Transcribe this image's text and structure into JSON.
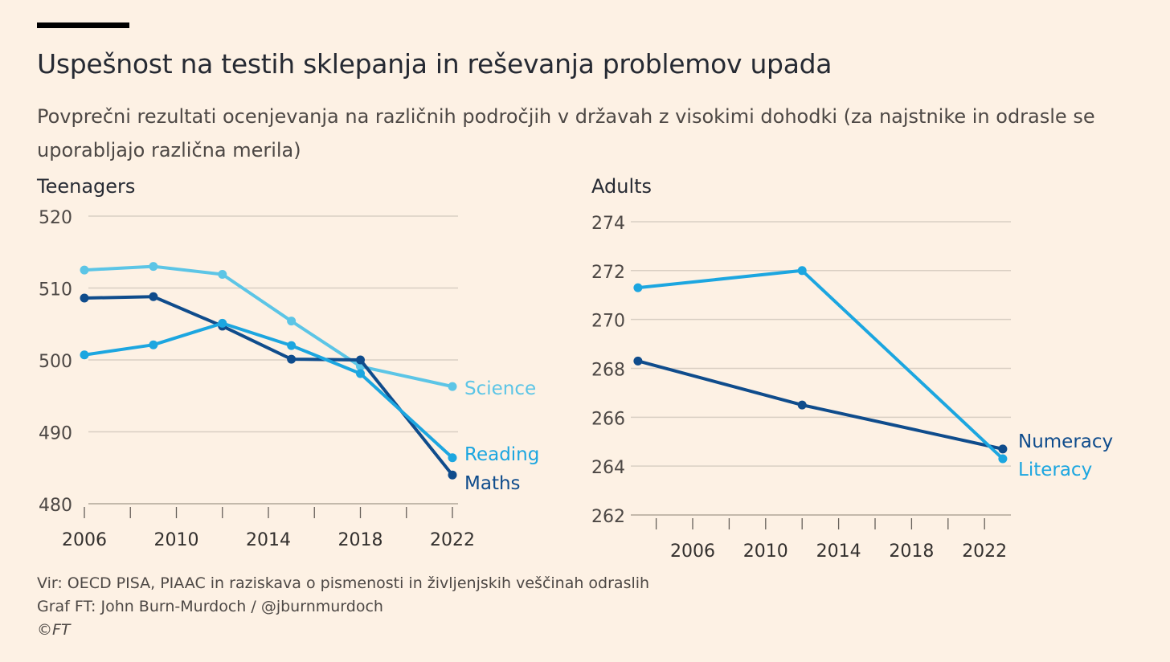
{
  "title": "Uspešnost na testih sklepanja in reševanja problemov upada",
  "subtitle": "Povprečni rezultati ocenjevanja na različnih področjih v državah z visokimi dohodki (za najstnike in odrasle se uporabljajo različna merila)",
  "footer": {
    "source": "Vir: OECD PISA, PIAAC in raziskava o pismenosti in življenjskih veščinah odraslih",
    "credit": "Graf FT: John Burn-Murdoch / @jburnmurdoch",
    "copyright": "©FT"
  },
  "chart_data": [
    {
      "type": "line",
      "title": "Teenagers",
      "ylim": [
        480,
        520
      ],
      "yticks": [
        480,
        490,
        500,
        510,
        520
      ],
      "xlim": [
        2006,
        2022
      ],
      "xticks": [
        2006,
        2010,
        2014,
        2018,
        2022
      ],
      "grid": true,
      "series": [
        {
          "name": "Science",
          "color": "#5cc5e6",
          "x": [
            2006,
            2009,
            2012,
            2015,
            2018,
            2022
          ],
          "values": [
            512.5,
            513,
            511.9,
            505.4,
            499.1,
            496.3
          ]
        },
        {
          "name": "Maths",
          "color": "#0f4c8c",
          "x": [
            2006,
            2009,
            2012,
            2015,
            2018,
            2022
          ],
          "values": [
            508.6,
            508.8,
            504.7,
            500.1,
            500,
            484
          ]
        },
        {
          "name": "Reading",
          "color": "#1ca6e0",
          "x": [
            2006,
            2009,
            2012,
            2015,
            2018,
            2022
          ],
          "values": [
            500.7,
            502.1,
            505.1,
            502,
            498.1,
            486.4
          ]
        }
      ]
    },
    {
      "type": "line",
      "title": "Adults",
      "ylim": [
        262,
        274
      ],
      "yticks": [
        262,
        264,
        266,
        268,
        270,
        272,
        274
      ],
      "xlim": [
        2004,
        2023
      ],
      "xticks": [
        2006,
        2010,
        2014,
        2018,
        2022
      ],
      "grid": true,
      "series": [
        {
          "name": "Numeracy",
          "color": "#0f4c8c",
          "x": [
            2003,
            2012,
            2023
          ],
          "values": [
            268.3,
            266.5,
            264.7
          ]
        },
        {
          "name": "Literacy",
          "color": "#1ca6e0",
          "x": [
            2003,
            2012,
            2023
          ],
          "values": [
            271.3,
            272,
            264.3
          ]
        }
      ]
    }
  ]
}
